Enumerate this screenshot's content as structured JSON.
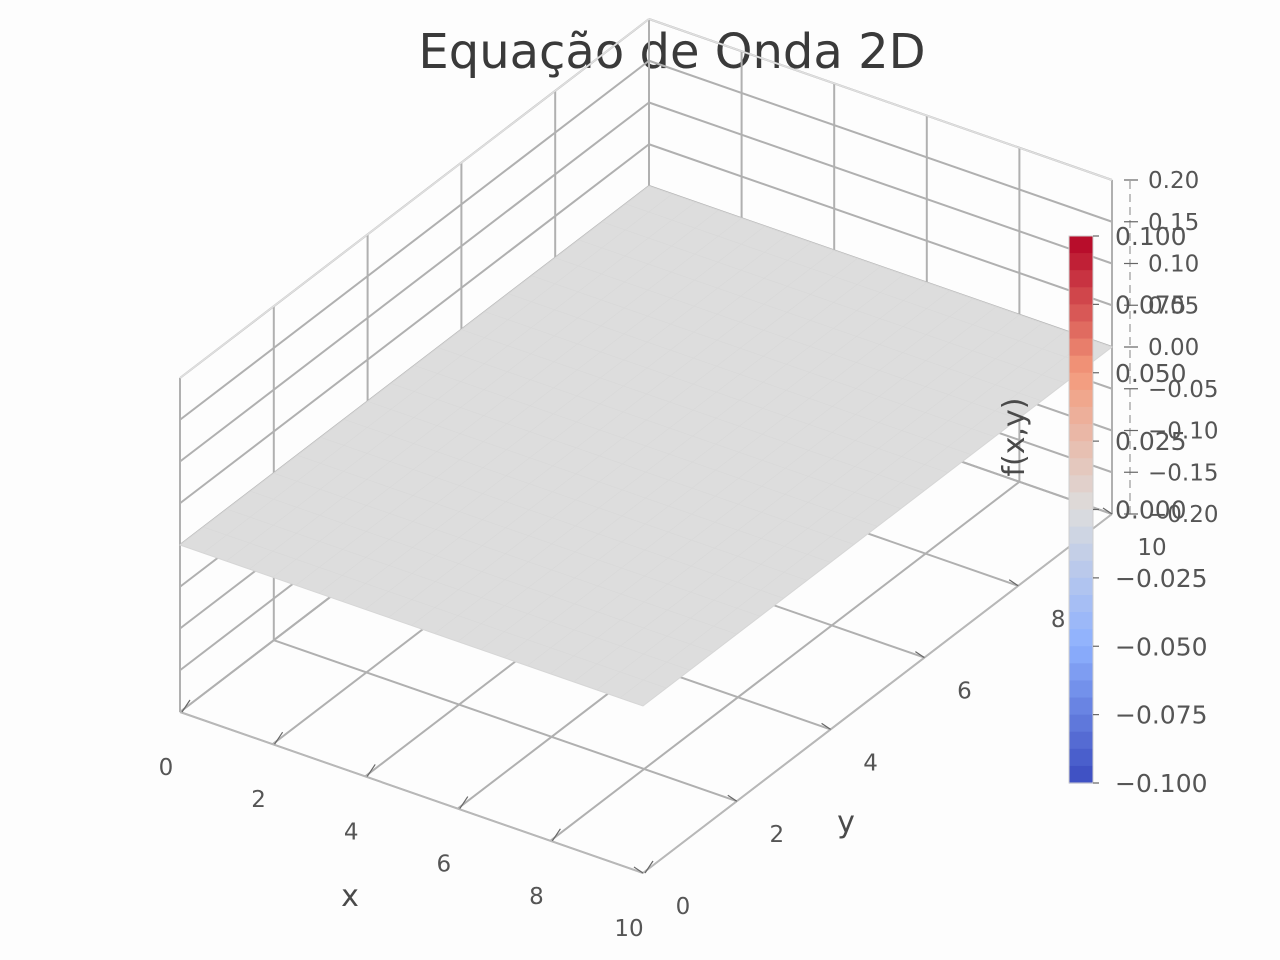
{
  "chart_data": {
    "type": "surface",
    "title": "Equação de Onda 2D",
    "xlabel": "x",
    "ylabel": "y",
    "zlabel": "f(x,y)",
    "x_ticks": [
      "0",
      "2",
      "4",
      "6",
      "8",
      "10"
    ],
    "y_ticks": [
      "0",
      "2",
      "4",
      "6",
      "8",
      "10"
    ],
    "z_ticks": [
      "−0.20",
      "−0.15",
      "−0.10",
      "−0.05",
      "0.00",
      "0.05",
      "0.10",
      "0.15",
      "0.20"
    ],
    "xlim": [
      0,
      10
    ],
    "ylim": [
      0,
      10
    ],
    "zlim": [
      -0.2,
      0.2
    ],
    "surface": {
      "x_range": [
        0,
        10
      ],
      "y_range": [
        0,
        10
      ],
      "z_value": 0.0,
      "description_value": "flat surface at f(x,y)=0"
    },
    "colorbar": {
      "colormap": "coolwarm",
      "range": [
        -0.1,
        0.1
      ],
      "ticks": [
        "0.100",
        "0.075",
        "0.050",
        "0.025",
        "0.000",
        "−0.025",
        "−0.050",
        "−0.075",
        "−0.100"
      ],
      "tick_values": [
        0.1,
        0.075,
        0.05,
        0.025,
        0.0,
        -0.025,
        -0.05,
        -0.075,
        -0.1
      ]
    },
    "grid": true,
    "colors": {
      "surface": "#dddddd",
      "grid": "#b0b0b0",
      "pane": "#fdfdfd",
      "text": "#4a4a4a"
    }
  }
}
